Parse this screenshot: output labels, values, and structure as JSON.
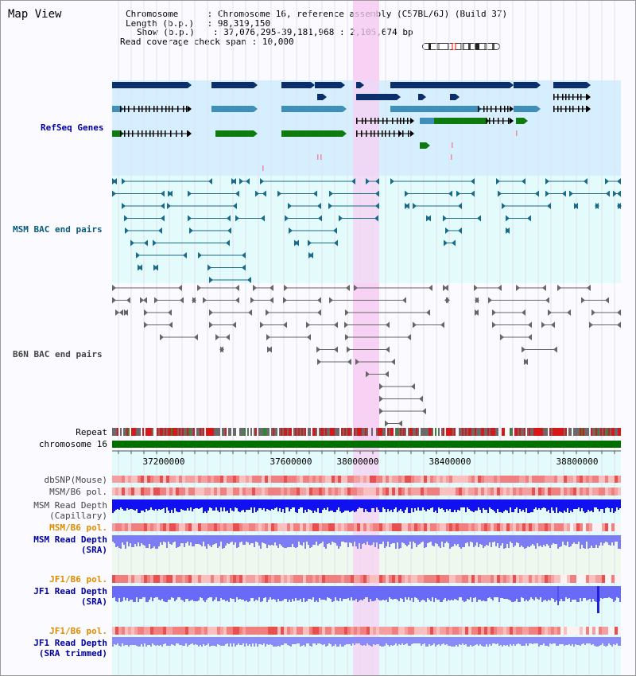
{
  "header": {
    "title": "Map View",
    "chromosome_key": "Chromosome",
    "chromosome_val": "Chromosome 16, reference assembly (C57BL/6J) (Build 37)",
    "length_key": "Length (b.p.)",
    "length_val": "98,319,150",
    "show_key": "Show (b.p.)",
    "show_val": "37,076,295-39,181,968 : 2,105,674 bp",
    "coverage_key": "Read coverage check span",
    "coverage_val": "10,000"
  },
  "tracks": {
    "refseq": "RefSeq Genes",
    "msm_bac": "MSM BAC end pairs",
    "b6n_bac": "B6N BAC end pairs",
    "repeat": "Repeat",
    "chromosome": "chromosome 16",
    "dbsnp": "dbSNP(Mouse)",
    "msm_b6_pol": "MSM/B6 pol.",
    "msm_depth_1": "MSM Read Depth",
    "msm_depth_2": "(Capillary)",
    "msm_b6_pol_sra": "MSM/B6 pol.",
    "msm_sra_1": "MSM Read Depth",
    "msm_sra_2": "(SRA)",
    "jf1_pol": "JF1/B6 pol.",
    "jf1_depth_1": "JF1 Read Depth",
    "jf1_depth_2": "(SRA)",
    "jf1_pol_t": "JF1/B6 pol.",
    "jf1_t_1": "JF1 Read Depth",
    "jf1_t_2": "(SRA trimmed)"
  },
  "axis": {
    "ticks": [
      "37200000",
      "37600000",
      "38000000",
      "38400000",
      "38800000"
    ]
  },
  "colors": {
    "highlight": "#f7d0f3",
    "refseq_bg": "#d6efff",
    "msm_bg": "#e4fbfb",
    "chromosome": "#007000",
    "depth_blue": "#1010f0",
    "depth_light": "#7070f8",
    "label_blue": "#0000a0",
    "label_teal": "#0a5a7a",
    "label_orange": "#e08c00"
  }
}
